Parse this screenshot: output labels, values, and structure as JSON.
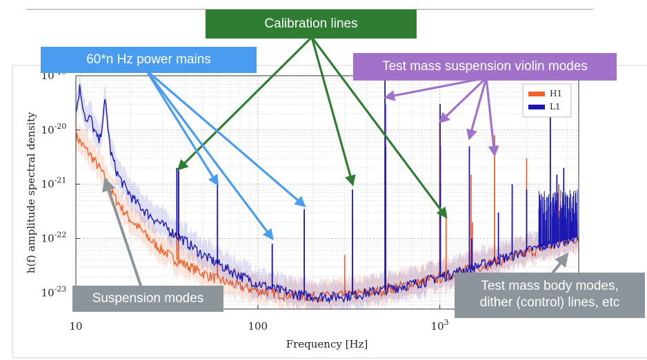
{
  "chart_data": {
    "type": "line",
    "title": "",
    "xlabel": "Frequency [Hz]",
    "ylabel": "h(f) amplitude spectral density",
    "xscale": "log",
    "yscale": "log",
    "xlim": [
      10,
      5800
    ],
    "ylim": [
      5e-24,
      1e-19
    ],
    "x_ticks": [
      {
        "value": 10,
        "label": "10"
      },
      {
        "value": 100,
        "label": "100"
      },
      {
        "value": 1000,
        "label": "10^3"
      }
    ],
    "y_ticks": [
      {
        "value": 1e-23,
        "label": "10^-23"
      },
      {
        "value": 1e-22,
        "label": "10^-22"
      },
      {
        "value": 1e-21,
        "label": "10^-21"
      },
      {
        "value": 1e-20,
        "label": "10^-20"
      },
      {
        "value": 1e-19,
        "label": "10^-19"
      }
    ],
    "grid": true,
    "legend": "top-right",
    "series": [
      {
        "name": "H1",
        "color": "#f0642c",
        "x": [
          10,
          11,
          12,
          13,
          14,
          15,
          16,
          18,
          20,
          23,
          26,
          30,
          35,
          40,
          50,
          60,
          70,
          80,
          100,
          120,
          150,
          180,
          220,
          260,
          300,
          350,
          400,
          500,
          600,
          700,
          800,
          1000,
          1200,
          1500,
          2000,
          2500,
          3000,
          4000,
          5000,
          5800
        ],
        "y": [
          8e-21,
          5e-21,
          3.5e-21,
          2.4e-21,
          1.6e-21,
          1e-21,
          6.5e-22,
          3.5e-22,
          2.2e-22,
          1.4e-22,
          9e-23,
          6e-23,
          4.2e-23,
          3.3e-23,
          2.3e-23,
          1.8e-23,
          1.5e-23,
          1.3e-23,
          1.1e-23,
          1e-23,
          9.2e-24,
          8.8e-24,
          8.6e-24,
          8.7e-24,
          9e-24,
          9.5e-24,
          1e-23,
          1.15e-23,
          1.3e-23,
          1.45e-23,
          1.6e-23,
          1.9e-23,
          2.3e-23,
          2.8e-23,
          3.7e-23,
          4.6e-23,
          5.5e-23,
          7.2e-23,
          9e-23,
          1.05e-22
        ],
        "peaks": [
          {
            "f": 35.9,
            "h": 1.9e-21
          },
          {
            "f": 36.7,
            "h": 1.6e-21
          },
          {
            "f": 60,
            "h": 8e-22
          },
          {
            "f": 120,
            "h": 7e-23
          },
          {
            "f": 180,
            "h": 3e-22
          },
          {
            "f": 300,
            "h": 5e-23
          },
          {
            "f": 331.9,
            "h": 2.5e-22
          },
          {
            "f": 505,
            "h": 3e-20
          },
          {
            "f": 1000,
            "h": 1.5e-20
          },
          {
            "f": 1010,
            "h": 5e-21
          },
          {
            "f": 1083,
            "h": 3e-22
          },
          {
            "f": 1484,
            "h": 1.5e-21
          },
          {
            "f": 1510,
            "h": 2e-22
          },
          {
            "f": 2000,
            "h": 8e-21
          },
          {
            "f": 2500,
            "h": 4e-22
          },
          {
            "f": 3000,
            "h": 3e-21
          },
          {
            "f": 4500,
            "h": 1e-21
          },
          {
            "f": 5000,
            "h": 6e-22
          }
        ]
      },
      {
        "name": "L1",
        "color": "#1a18b0",
        "x": [
          10,
          10.5,
          11,
          11.5,
          12,
          12.7,
          13.5,
          14.5,
          15.5,
          17,
          19,
          21,
          24,
          28,
          33,
          40,
          50,
          60,
          70,
          85,
          100,
          120,
          150,
          180,
          220,
          260,
          300,
          350,
          400,
          500,
          600,
          700,
          800,
          1000,
          1200,
          1500,
          2000,
          2500,
          3000,
          4000,
          5000,
          5800
        ],
        "y": [
          2e-20,
          6e-20,
          2.6e-20,
          1.3e-20,
          1.8e-20,
          9e-21,
          6e-21,
          3.5e-20,
          4e-21,
          1.5e-21,
          8e-22,
          5e-22,
          3.2e-22,
          2.1e-22,
          1.4e-22,
          9e-23,
          5e-23,
          3.5e-23,
          2.6e-23,
          1.9e-23,
          1.5e-23,
          1.2e-23,
          1e-23,
          9e-24,
          8.5e-24,
          8.5e-24,
          8.8e-24,
          9.3e-24,
          1e-23,
          1.15e-23,
          1.3e-23,
          1.45e-23,
          1.6e-23,
          1.95e-23,
          2.35e-23,
          2.9e-23,
          3.9e-23,
          4.9e-23,
          5.9e-23,
          7.8e-23,
          9.6e-23,
          1.1e-22
        ],
        "peaks": [
          {
            "f": 35.9,
            "h": 2e-21
          },
          {
            "f": 36.7,
            "h": 1.8e-21
          },
          {
            "f": 60,
            "h": 1e-21
          },
          {
            "f": 120,
            "h": 8e-23
          },
          {
            "f": 180,
            "h": 3.5e-22
          },
          {
            "f": 331.3,
            "h": 8e-22
          },
          {
            "f": 499.7,
            "h": 1e-19
          },
          {
            "f": 503,
            "h": 5e-21
          },
          {
            "f": 1003.7,
            "h": 3e-20
          },
          {
            "f": 1006,
            "h": 1e-21
          },
          {
            "f": 1454,
            "h": 5e-21
          },
          {
            "f": 1500,
            "h": 1e-22
          },
          {
            "f": 2100,
            "h": 3e-22
          },
          {
            "f": 2500,
            "h": 1e-21
          },
          {
            "f": 3000,
            "h": 8e-22
          },
          {
            "f": 4050,
            "h": 2e-20
          },
          {
            "f": 4400,
            "h": 1.5e-21
          },
          {
            "f": 4800,
            "h": 2e-21
          },
          {
            "f": 5400,
            "h": 6e-22
          }
        ],
        "forest": {
          "from": 3500,
          "to": 5700,
          "h_min": 1.5e-22,
          "h_max": 8e-22
        }
      }
    ],
    "annotations": [
      {
        "id": "calibration",
        "label": "Calibration lines",
        "color": "#2e7d32",
        "targets": [
          {
            "f": 36.7,
            "h": 1.9e-21
          },
          {
            "f": 331.9,
            "h": 1e-21
          },
          {
            "f": 1083,
            "h": 2.5e-22
          }
        ]
      },
      {
        "id": "power-mains",
        "label": "60*n Hz power mains",
        "color": "#4a9cf0",
        "targets": [
          {
            "f": 60,
            "h": 1e-21
          },
          {
            "f": 120,
            "h": 1e-22
          },
          {
            "f": 180,
            "h": 4e-22
          }
        ]
      },
      {
        "id": "violin",
        "label": "Test mass suspension violin modes",
        "color": "#a271c9",
        "targets": [
          {
            "f": 505,
            "h": 4e-20
          },
          {
            "f": 1003.7,
            "h": 1.4e-20
          },
          {
            "f": 1454,
            "h": 7e-21
          },
          {
            "f": 2000,
            "h": 3.5e-21
          }
        ]
      },
      {
        "id": "suspension",
        "label": "Suspension modes",
        "color": "#8c949c",
        "targets": [
          {
            "f": 14.5,
            "h": 1.2e-21
          }
        ]
      },
      {
        "id": "body-modes",
        "label": "Test mass body modes, dither (control) lines, etc",
        "color": "#8c949c",
        "targets": [
          {
            "f": 5000,
            "h": 5e-23
          }
        ]
      }
    ]
  },
  "callouts": {
    "calibration": "Calibration lines",
    "power_mains": "60*n Hz power mains",
    "violin": "Test mass suspension violin modes",
    "suspension": "Suspension modes",
    "body_modes_line1": "Test mass body modes,",
    "body_modes_line2": "dither (control) lines, etc"
  },
  "colors": {
    "h1": "#f0642c",
    "l1": "#1a18b0",
    "green": "#2e7d32",
    "blue": "#4a9cf0",
    "purple": "#a271c9",
    "grey": "#8c949c"
  }
}
